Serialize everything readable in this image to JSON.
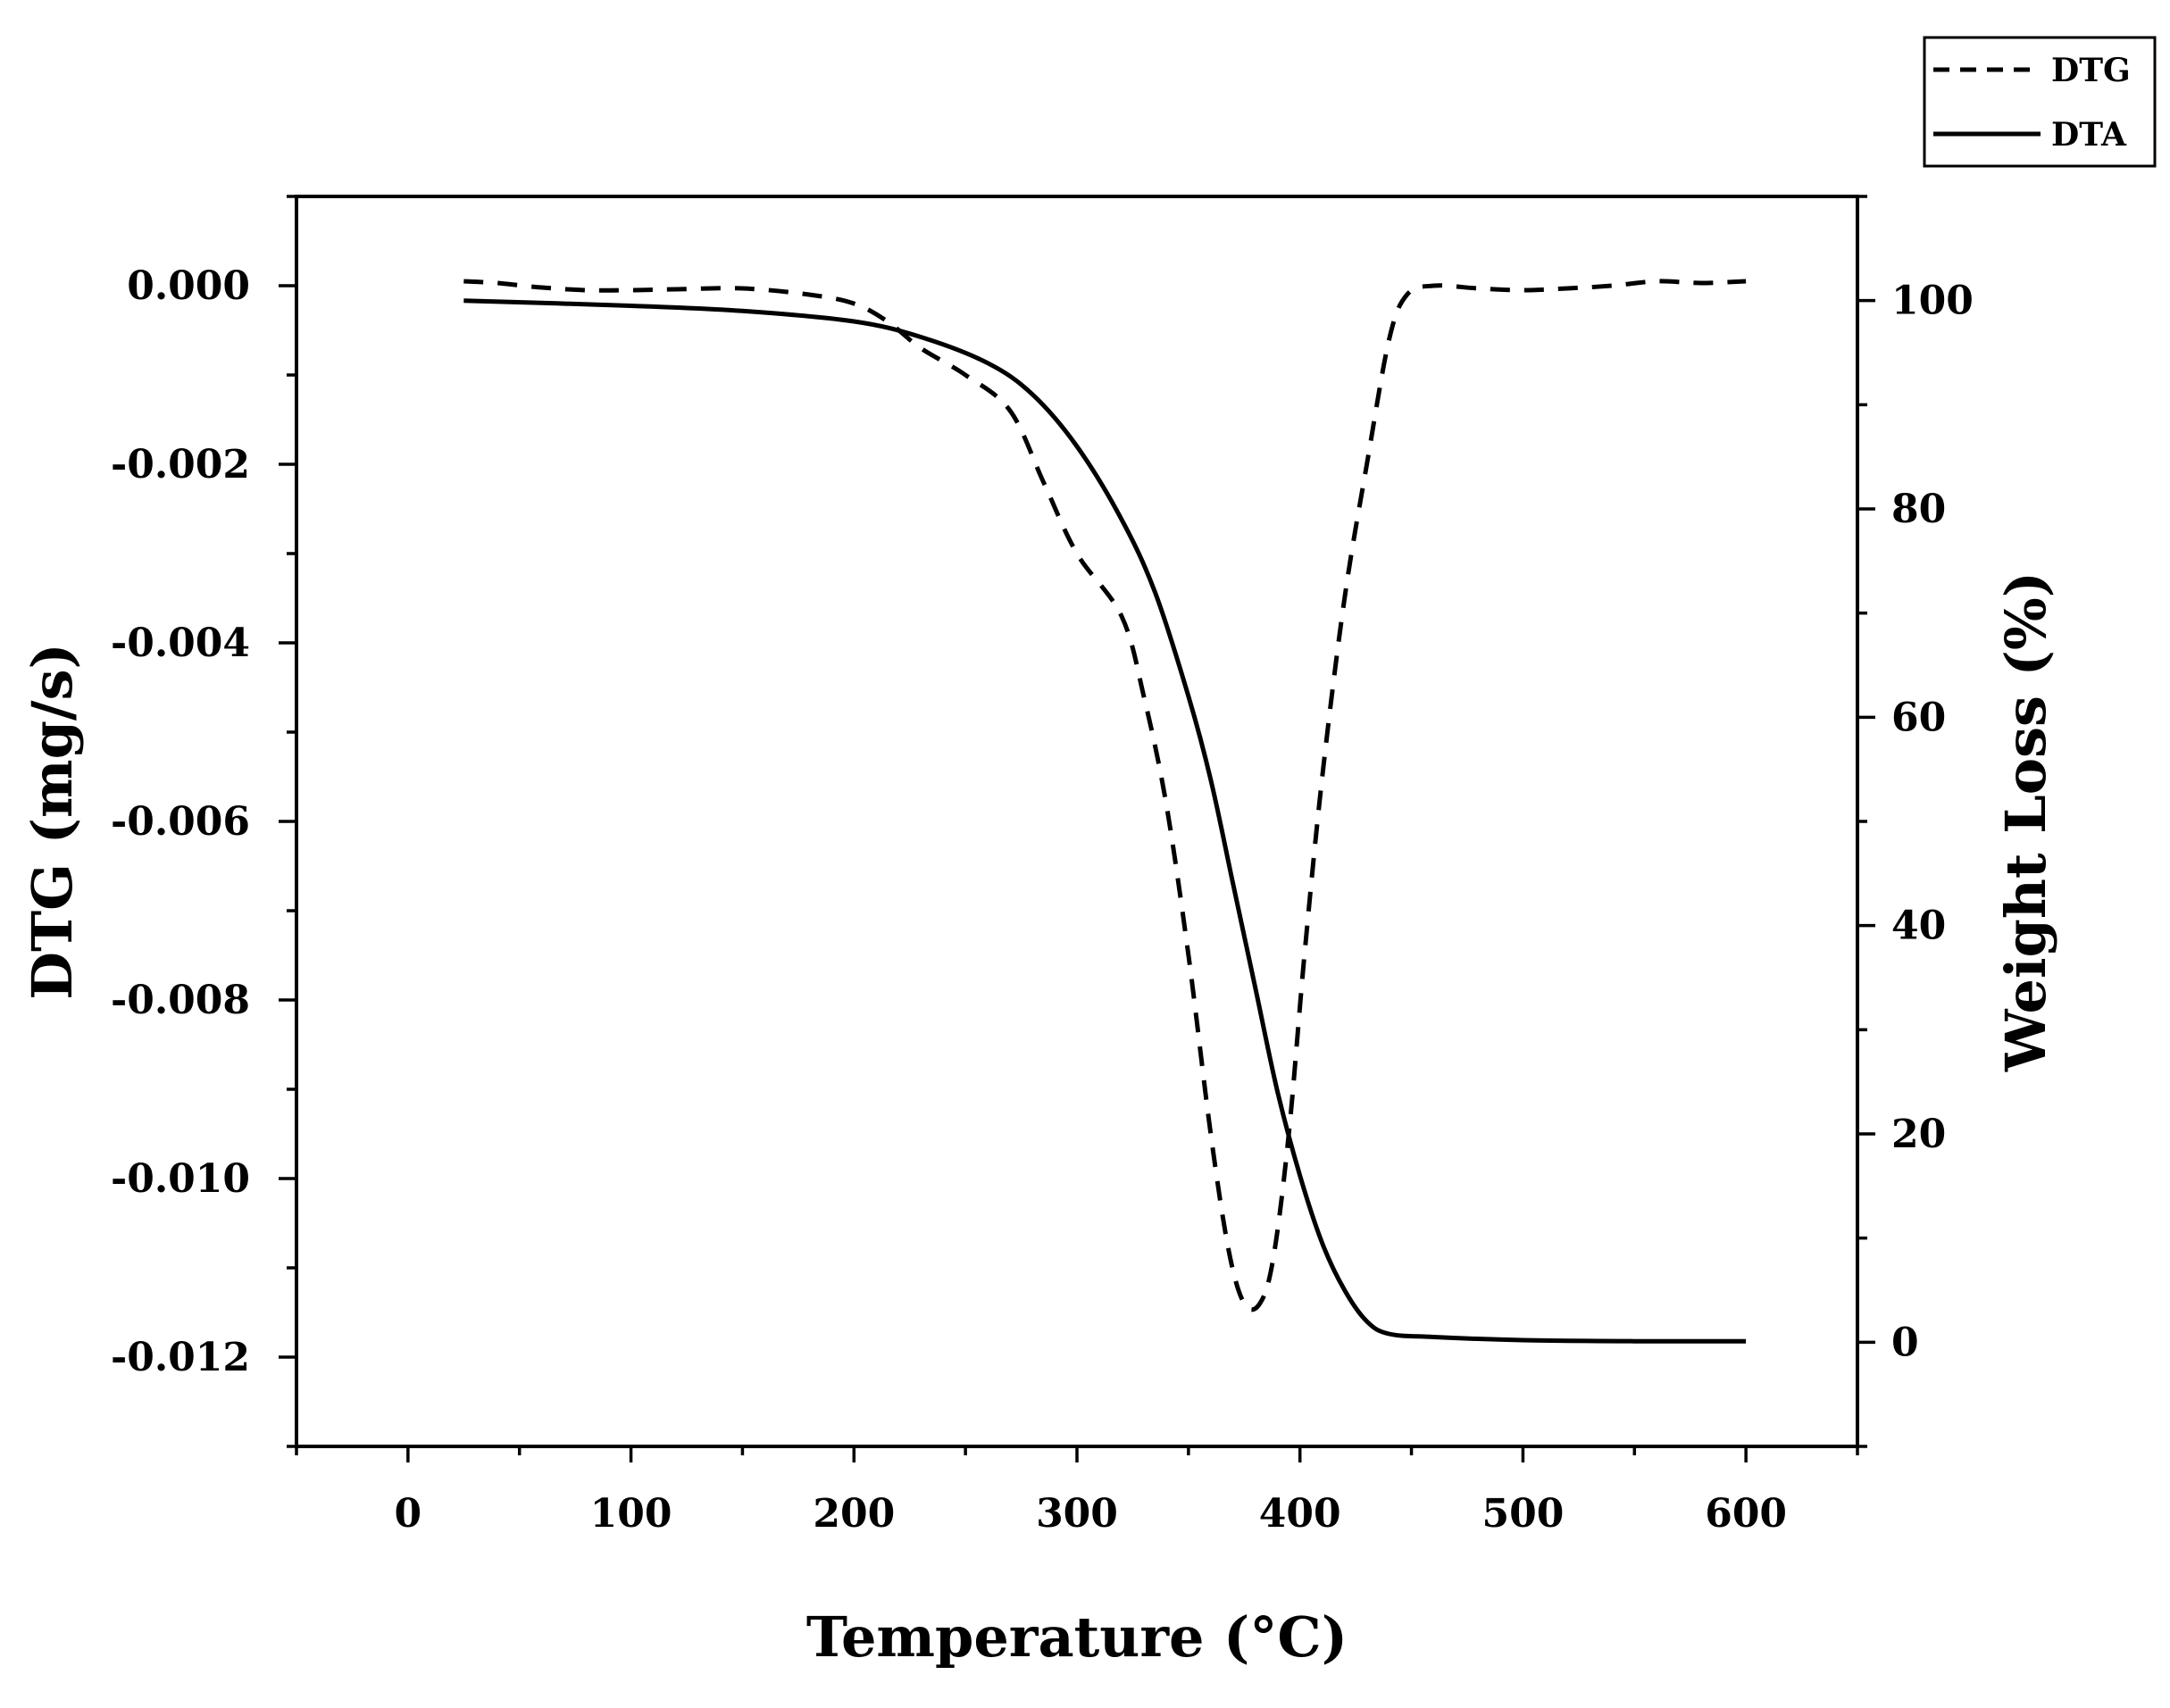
{
  "chart_data": {
    "type": "line",
    "xlabel": "Temperature (°C)",
    "ylabel_left": "DTG (mg/s)",
    "ylabel_right": "Weight Loss (%)",
    "xlim": [
      -50,
      650
    ],
    "ylim_left": [
      -0.013,
      0.001
    ],
    "ylim_right": [
      -10,
      110
    ],
    "x_ticks": [
      0,
      100,
      200,
      300,
      400,
      500,
      600
    ],
    "y_left_ticks": [
      0.0,
      -0.002,
      -0.004,
      -0.006,
      -0.008,
      -0.01,
      -0.012
    ],
    "y_left_tick_labels": [
      "0.000",
      "-0.002",
      "-0.004",
      "-0.006",
      "-0.008",
      "-0.010",
      "-0.012"
    ],
    "y_right_ticks": [
      0,
      20,
      40,
      60,
      80,
      100
    ],
    "legend": {
      "placement": "top-right, outside plot",
      "entries": [
        "DTG",
        "DTA"
      ]
    },
    "grid": false,
    "series": [
      {
        "name": "DTG",
        "style": "dashed",
        "axis": "left",
        "x": [
          25,
          40,
          60,
          80,
          100,
          120,
          150,
          180,
          200,
          215,
          230,
          250,
          270,
          285,
          300,
          320,
          330,
          340,
          350,
          360,
          368,
          375,
          382,
          388,
          395,
          402,
          410,
          420,
          430,
          440,
          448,
          460,
          480,
          500,
          520,
          540,
          560,
          580,
          600
        ],
        "y": [
          5e-05,
          3e-05,
          -2e-05,
          -5e-05,
          -5e-05,
          -4e-05,
          -3e-05,
          -0.0001,
          -0.0002,
          -0.0004,
          -0.0007,
          -0.001,
          -0.0014,
          -0.0022,
          -0.003,
          -0.0037,
          -0.0046,
          -0.0058,
          -0.0075,
          -0.0095,
          -0.0108,
          -0.0114,
          -0.0114,
          -0.0109,
          -0.0095,
          -0.0075,
          -0.0055,
          -0.0035,
          -0.002,
          -0.0006,
          -0.0001,
          0.0,
          -3e-05,
          -5e-05,
          -3e-05,
          0.0,
          5e-05,
          3e-05,
          5e-05
        ]
      },
      {
        "name": "DTA",
        "style": "solid",
        "axis": "right",
        "x": [
          25,
          100,
          150,
          200,
          230,
          260,
          280,
          300,
          320,
          335,
          350,
          360,
          370,
          380,
          390,
          400,
          410,
          420,
          430,
          440,
          460,
          500,
          550,
          600
        ],
        "y": [
          100,
          99.5,
          99,
          98,
          96.5,
          94,
          91,
          86,
          79,
          72,
          62,
          54,
          44,
          34,
          24,
          16,
          9.5,
          5,
          2,
          0.8,
          0.5,
          0.2,
          0.1,
          0.1
        ]
      }
    ]
  }
}
